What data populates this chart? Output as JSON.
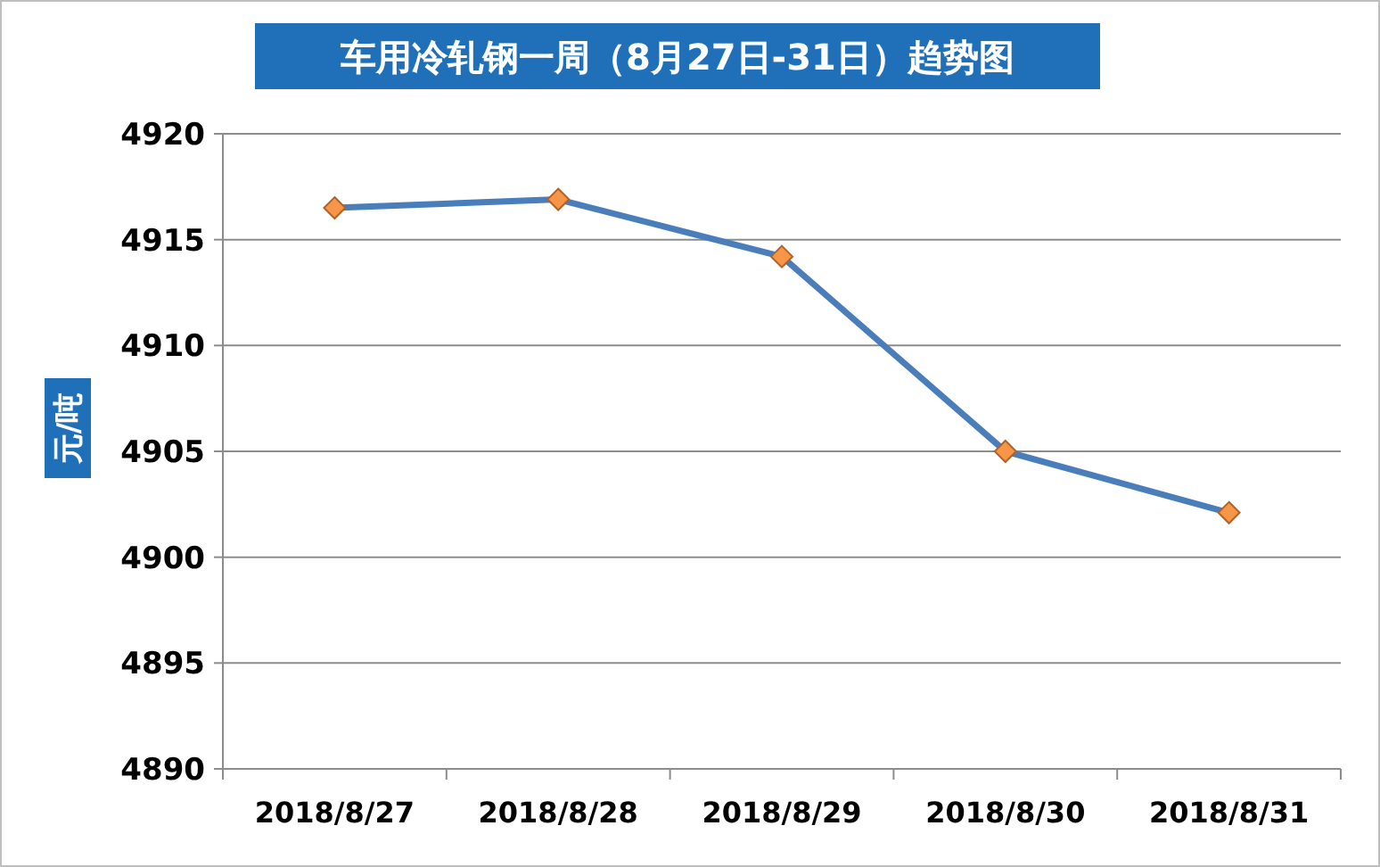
{
  "chart_data": {
    "type": "line",
    "title": "车用冷轧钢一周（8月27日-31日）趋势图",
    "ylabel": "元/吨",
    "categories": [
      "2018/8/27",
      "2018/8/28",
      "2018/8/29",
      "2018/8/30",
      "2018/8/31"
    ],
    "series": [
      {
        "color": "#4a7ebb",
        "values": [
          4916.5,
          4916.9,
          4914.2,
          4905.0,
          4902.1
        ]
      }
    ],
    "ylim": [
      4890,
      4920
    ],
    "yticks": [
      4890,
      4895,
      4900,
      4905,
      4910,
      4915,
      4920
    ],
    "grid": "y",
    "marker": "diamond"
  }
}
